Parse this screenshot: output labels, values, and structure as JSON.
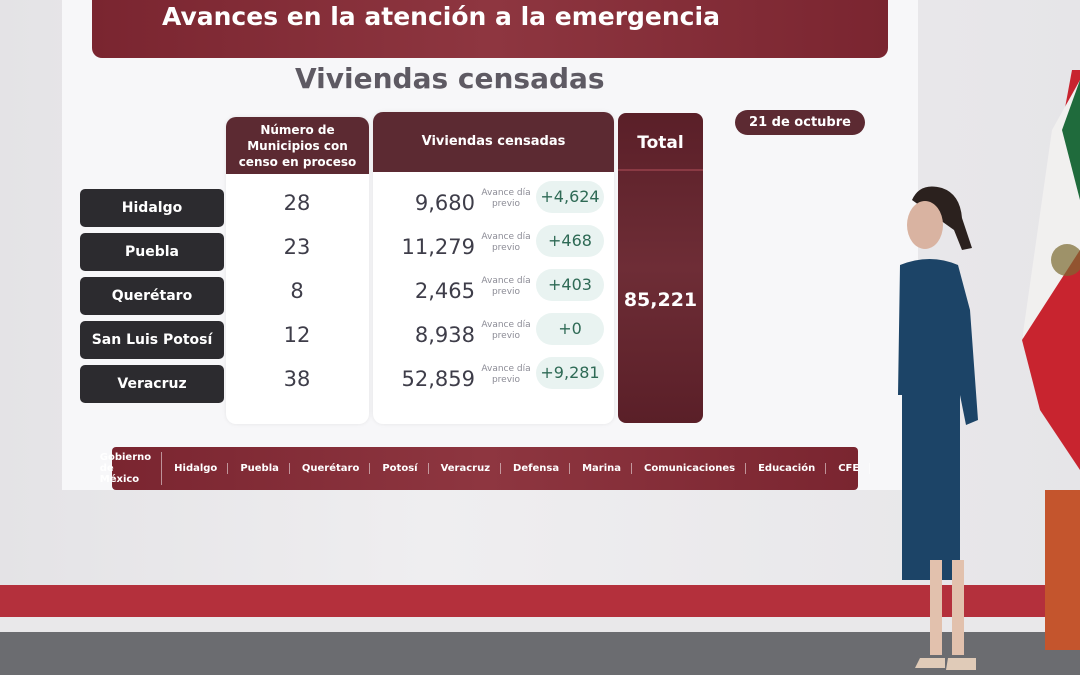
{
  "slide": {
    "title": "Avances en la atención a la emergencia",
    "subtitle": "Viviendas censadas",
    "date": "21 de octubre",
    "headers": {
      "municipios": "Número de Municipios con censo en proceso",
      "viviendas": "Viviendas censadas",
      "total": "Total"
    },
    "avance_label": "Avance día previo",
    "rows": [
      {
        "state": "Hidalgo",
        "municipios": "28",
        "viviendas": "9,680",
        "delta": "+4,624"
      },
      {
        "state": "Puebla",
        "municipios": "23",
        "viviendas": "11,279",
        "delta": "+468"
      },
      {
        "state": "Querétaro",
        "municipios": "8",
        "viviendas": "2,465",
        "delta": "+403"
      },
      {
        "state": "San Luis Potosí",
        "municipios": "12",
        "viviendas": "8,938",
        "delta": "+0"
      },
      {
        "state": "Veracruz",
        "municipios": "38",
        "viviendas": "52,859",
        "delta": "+9,281"
      }
    ],
    "total_value": "85,221",
    "logos": [
      "Gobierno de México",
      "Hidalgo",
      "Puebla",
      "Querétaro",
      "Potosí",
      "Veracruz",
      "Defensa",
      "Marina",
      "Comunicaciones",
      "Educación",
      "CFE"
    ]
  },
  "colors": {
    "accent": "#5c2a32",
    "delta_text": "#2e6a55",
    "state_label_bg": "#2c2b2f"
  }
}
